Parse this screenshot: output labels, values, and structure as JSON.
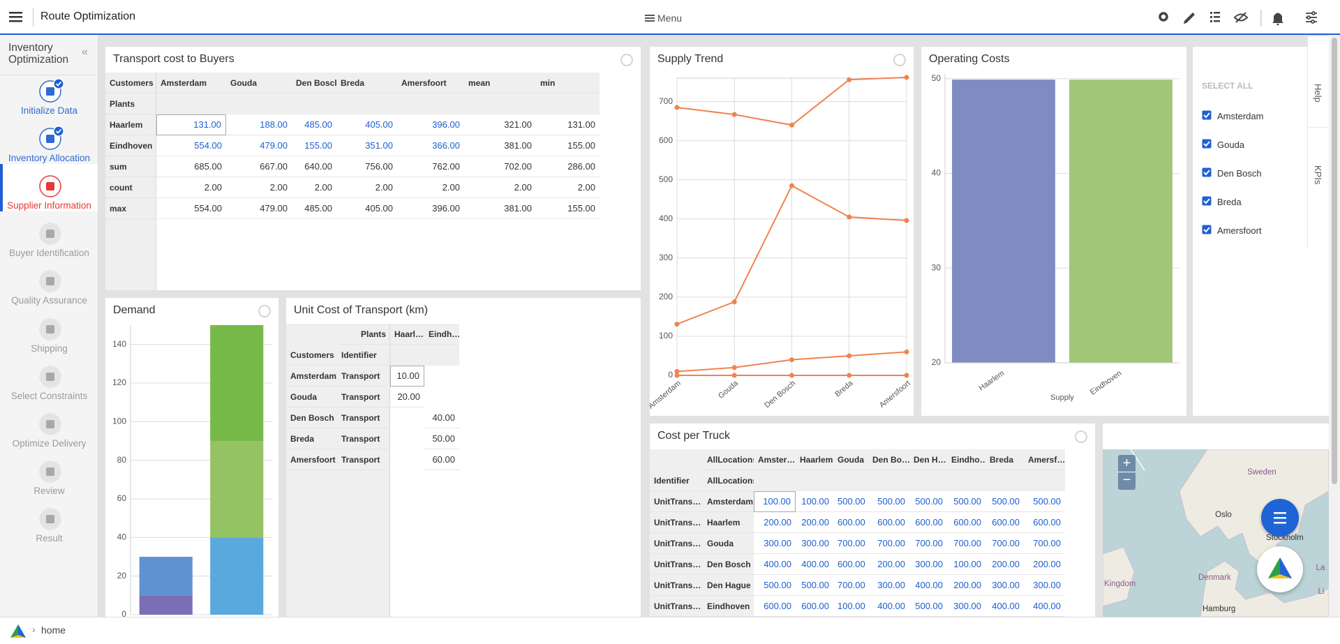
{
  "header": {
    "title": "Route Optimization",
    "menu": "Menu"
  },
  "sidebar": {
    "title": "Inventory Optimization",
    "steps": [
      "Initialize Data",
      "Inventory Allocation",
      "Supplier Information",
      "Buyer Identification",
      "Quality Assurance",
      "Shipping",
      "Select Constraints",
      "Optimize Delivery",
      "Review",
      "Result"
    ]
  },
  "transport_table": {
    "title": "Transport cost to Buyers",
    "columns": [
      "Customers",
      "Amsterdam",
      "Gouda",
      "Den Bosch",
      "Breda",
      "Amersfoort",
      "mean",
      "min"
    ],
    "subheader": "Plants",
    "rows": [
      [
        "Haarlem",
        "131.00",
        "188.00",
        "485.00",
        "405.00",
        "396.00",
        "321.00",
        "131.00"
      ],
      [
        "Eindhoven",
        "554.00",
        "479.00",
        "155.00",
        "351.00",
        "366.00",
        "381.00",
        "155.00"
      ],
      [
        "sum",
        "685.00",
        "667.00",
        "640.00",
        "756.00",
        "762.00",
        "702.00",
        "286.00"
      ],
      [
        "count",
        "2.00",
        "2.00",
        "2.00",
        "2.00",
        "2.00",
        "2.00",
        "2.00"
      ],
      [
        "max",
        "554.00",
        "479.00",
        "485.00",
        "405.00",
        "396.00",
        "381.00",
        "155.00"
      ]
    ]
  },
  "unit_cost_table": {
    "title": "Unit Cost of Transport (km)",
    "header1": [
      "Plants",
      "Haarl…",
      "Eindh…"
    ],
    "header2": [
      "Customers",
      "Identifier"
    ],
    "rows": [
      [
        "Amsterdam",
        "Transport",
        "10.00",
        null
      ],
      [
        "Gouda",
        "Transport",
        "20.00",
        null
      ],
      [
        "Den Bosch",
        "Transport",
        null,
        "40.00"
      ],
      [
        "Breda",
        "Transport",
        null,
        "50.00"
      ],
      [
        "Amersfoort",
        "Transport",
        null,
        "60.00"
      ]
    ]
  },
  "cost_per_truck": {
    "title": "Cost per Truck",
    "header1": [
      "AllLocations",
      "Amster…",
      "Haarlem",
      "Gouda",
      "Den Bo…",
      "Den H…",
      "Eindho…",
      "Breda",
      "Amersf…"
    ],
    "header2": [
      "Identifier",
      "AllLocations"
    ],
    "rows": [
      [
        "UnitTrans…",
        "Amsterdam",
        "100.00",
        "100.00",
        "500.00",
        "500.00",
        "500.00",
        "500.00",
        "500.00",
        "500.00"
      ],
      [
        "UnitTrans…",
        "Haarlem",
        "200.00",
        "200.00",
        "600.00",
        "600.00",
        "600.00",
        "600.00",
        "600.00",
        "600.00"
      ],
      [
        "UnitTrans…",
        "Gouda",
        "300.00",
        "300.00",
        "700.00",
        "700.00",
        "700.00",
        "700.00",
        "700.00",
        "700.00"
      ],
      [
        "UnitTrans…",
        "Den Bosch",
        "400.00",
        "400.00",
        "600.00",
        "200.00",
        "300.00",
        "100.00",
        "200.00",
        "200.00"
      ],
      [
        "UnitTrans…",
        "Den Hague",
        "500.00",
        "500.00",
        "700.00",
        "300.00",
        "400.00",
        "200.00",
        "300.00",
        "300.00"
      ],
      [
        "UnitTrans…",
        "Eindhoven",
        "600.00",
        "600.00",
        "100.00",
        "400.00",
        "500.00",
        "300.00",
        "400.00",
        "400.00"
      ]
    ]
  },
  "filter": {
    "select_all": "SELECT ALL",
    "items": [
      "Amsterdam",
      "Gouda",
      "Den Bosch",
      "Breda",
      "Amersfoort"
    ]
  },
  "side_tabs": [
    "Help",
    "KPIs"
  ],
  "map": {
    "labels": [
      "Sweden",
      "Oslo",
      "Stockholm",
      "Kingdom",
      "Denmark",
      "Hamburg",
      "La",
      "Li"
    ]
  },
  "footer": {
    "breadcrumb": "home"
  },
  "chart_data": [
    {
      "type": "line",
      "title": "Supply Trend",
      "categories": [
        "Amsterdam",
        "Gouda",
        "Den Bosch",
        "Breda",
        "Amersfoort"
      ],
      "series": [
        {
          "color": "#f0834f",
          "values": [
            685,
            667,
            640,
            756,
            762
          ]
        },
        {
          "color": "#f0834f",
          "values": [
            131,
            188,
            485,
            405,
            396
          ]
        },
        {
          "color": "#f0834f",
          "values": [
            10,
            20,
            40,
            50,
            60
          ]
        },
        {
          "color": "#f0834f",
          "values": [
            0,
            0,
            0,
            0,
            0
          ]
        }
      ],
      "ylim": [
        0,
        760
      ],
      "yticks": [
        0,
        100,
        200,
        300,
        400,
        500,
        600,
        700
      ],
      "grid": true
    },
    {
      "type": "bar",
      "title": "Operating Costs",
      "xlabel": "Supply",
      "categories": [
        "Haarlem",
        "Eindhoven"
      ],
      "values": [
        49.9,
        49.9
      ],
      "colors": [
        "#7f8cc1",
        "#a2c677"
      ],
      "ylim": [
        20,
        50.5
      ],
      "yticks": [
        20,
        30,
        40,
        50
      ],
      "grid": true
    },
    {
      "type": "stacked_bar",
      "title": "Demand",
      "categories": [
        null,
        null
      ],
      "series": [
        {
          "color": "#7a6fb6",
          "values": [
            10,
            null
          ]
        },
        {
          "color": "#5f92d2",
          "values": [
            20,
            null
          ]
        },
        {
          "color": "#5aa9de",
          "values": [
            null,
            40
          ]
        },
        {
          "color": "#95c263",
          "values": [
            null,
            50
          ]
        },
        {
          "color": "#77b948",
          "values": [
            null,
            60
          ]
        }
      ],
      "ylim": [
        0,
        150
      ],
      "yticks": [
        0,
        20,
        40,
        60,
        80,
        100,
        120,
        140
      ],
      "grid": true
    }
  ]
}
